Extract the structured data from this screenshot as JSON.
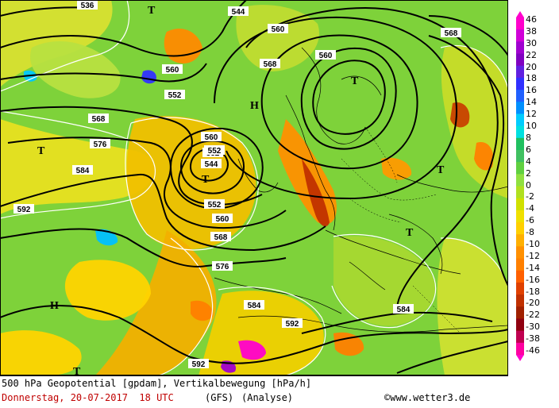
{
  "map": {
    "isoline_labels": [
      "536",
      "544",
      "552",
      "560",
      "568",
      "576",
      "584",
      "592",
      "552",
      "544",
      "560",
      "568",
      "560",
      "552",
      "552",
      "560",
      "568",
      "576",
      "584",
      "592",
      "584",
      "592",
      "560",
      "568"
    ],
    "pressure_systems": [
      {
        "symbol": "T"
      },
      {
        "symbol": "H"
      },
      {
        "symbol": "T"
      },
      {
        "symbol": "T"
      },
      {
        "symbol": "T"
      },
      {
        "symbol": "T"
      },
      {
        "symbol": "T"
      },
      {
        "symbol": "H"
      },
      {
        "symbol": "T"
      }
    ]
  },
  "footer": {
    "line1": "500 hPa Geopotential [gpdam], Vertikalbewegung [hPa/h]",
    "date": "Donnerstag, 20-07-2017  18 UTC",
    "model": "(GFS)",
    "run": "(Analyse)",
    "credit": "©www.wetter3.de"
  },
  "legend": {
    "colors": {
      "strong_rise": "#ff00cc",
      "rise": "#a000d0",
      "moderate_rise": "#3030ff",
      "weak_rise": "#00ccff",
      "neutral_up": "#40c060",
      "neutral_down": "#d0e000",
      "weak_sink": "#ffd000",
      "moderate_sink": "#ff8000",
      "sink": "#c03000",
      "strong_sink": "#ff00a0"
    },
    "ticks": [
      "46",
      "38",
      "30",
      "22",
      "20",
      "18",
      "16",
      "14",
      "12",
      "10",
      "8",
      "6",
      "4",
      "2",
      "0",
      "-2",
      "-4",
      "-6",
      "-8",
      "-10",
      "-12",
      "-14",
      "-16",
      "-18",
      "-20",
      "-22",
      "-30",
      "-38",
      "-46"
    ]
  }
}
